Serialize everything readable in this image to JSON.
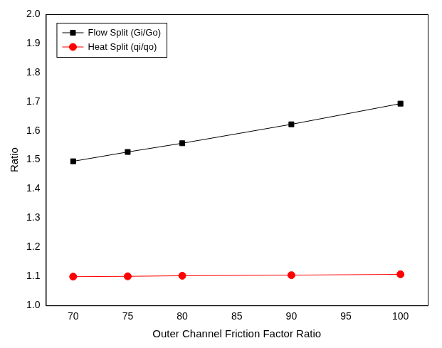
{
  "chart_data": {
    "type": "line",
    "x_label": "Outer Channel Friction Factor Ratio",
    "y_label": "Ratio",
    "x": [
      70,
      75,
      80,
      90,
      100
    ],
    "series": [
      {
        "name": "Flow Split (Gi/Go)",
        "color": "#000000",
        "marker": "square",
        "line_style": "solid",
        "values": [
          1.495,
          1.527,
          1.557,
          1.622,
          1.693
        ]
      },
      {
        "name": "Heat Split (qi/qo)",
        "color": "#ff0000",
        "marker": "circle",
        "line_style": "solid",
        "values": [
          1.099,
          1.1,
          1.102,
          1.104,
          1.107
        ]
      }
    ],
    "xlim": [
      67.5,
      102.5
    ],
    "xticks": [
      70,
      75,
      80,
      85,
      90,
      95,
      100
    ],
    "ylim": [
      1.0,
      2.0
    ],
    "yticks": [
      {
        "value": 1.0,
        "label": "1.0"
      },
      1.1,
      1.2,
      1.3,
      1.4,
      1.5,
      1.6,
      1.7,
      1.8,
      1.9,
      {
        "value": 2.0,
        "label": "2.0"
      }
    ],
    "grid": false,
    "legend": "upper left"
  }
}
